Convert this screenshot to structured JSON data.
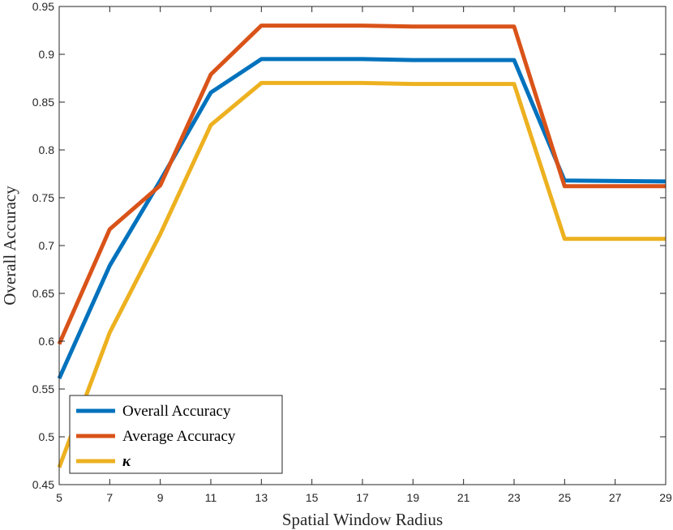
{
  "chart_data": {
    "type": "line",
    "xlabel": "Spatial Window Radius",
    "ylabel": "Overall Accuracy",
    "xlim": [
      5,
      29
    ],
    "ylim": [
      0.45,
      0.95
    ],
    "xticks": [
      "5",
      "7",
      "9",
      "11",
      "13",
      "15",
      "17",
      "19",
      "21",
      "23",
      "25",
      "27",
      "29"
    ],
    "yticks": [
      "0.45",
      "0.5",
      "0.55",
      "0.6",
      "0.65",
      "0.7",
      "0.75",
      "0.8",
      "0.85",
      "0.9",
      "0.95"
    ],
    "grid": false,
    "legend_position": "bottom-left",
    "x": [
      5,
      7,
      9,
      11,
      13,
      17,
      19,
      23,
      25,
      29
    ],
    "series": [
      {
        "name": "Overall Accuracy",
        "color": "#0072BD",
        "values": [
          0.561,
          0.679,
          0.768,
          0.86,
          0.895,
          0.895,
          0.894,
          0.894,
          0.768,
          0.767
        ]
      },
      {
        "name": "Average Accuracy",
        "color": "#D95319",
        "values": [
          0.597,
          0.717,
          0.763,
          0.879,
          0.93,
          0.93,
          0.929,
          0.929,
          0.762,
          0.762
        ]
      },
      {
        "name": "κ",
        "color": "#EDB120",
        "values": [
          0.468,
          0.609,
          0.712,
          0.826,
          0.87,
          0.87,
          0.869,
          0.869,
          0.707,
          0.707
        ]
      }
    ]
  }
}
